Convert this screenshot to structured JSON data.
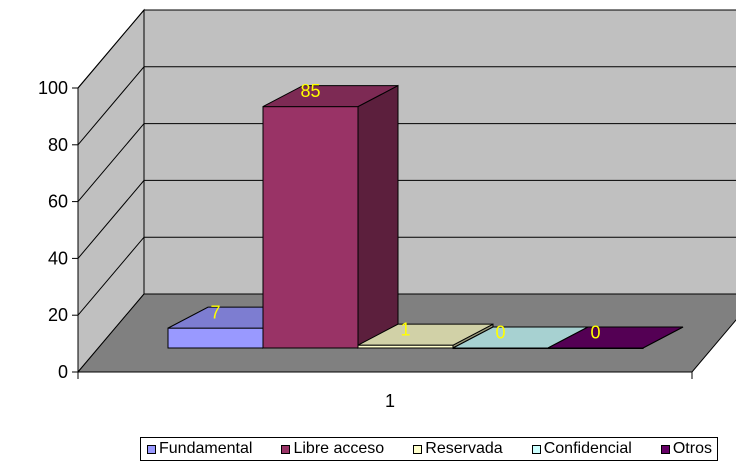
{
  "chart_data": {
    "type": "bar",
    "title": "",
    "xlabel": "",
    "ylabel": "",
    "categories": [
      "1"
    ],
    "ylim": [
      0,
      100
    ],
    "yticks": [
      0,
      20,
      40,
      60,
      80,
      100
    ],
    "grid": true,
    "three_d": true,
    "legend_position": "bottom",
    "data_label_color": "#ffff00",
    "series": [
      {
        "name": "Fundamental",
        "values": [
          7
        ],
        "color": "#9999ff"
      },
      {
        "name": "Libre acceso",
        "values": [
          85
        ],
        "color": "#993366"
      },
      {
        "name": "Reservada",
        "values": [
          1
        ],
        "color": "#ffffcc"
      },
      {
        "name": "Confidencial",
        "values": [
          0
        ],
        "color": "#ccffff"
      },
      {
        "name": "Otros",
        "values": [
          0
        ],
        "color": "#660066"
      }
    ]
  }
}
